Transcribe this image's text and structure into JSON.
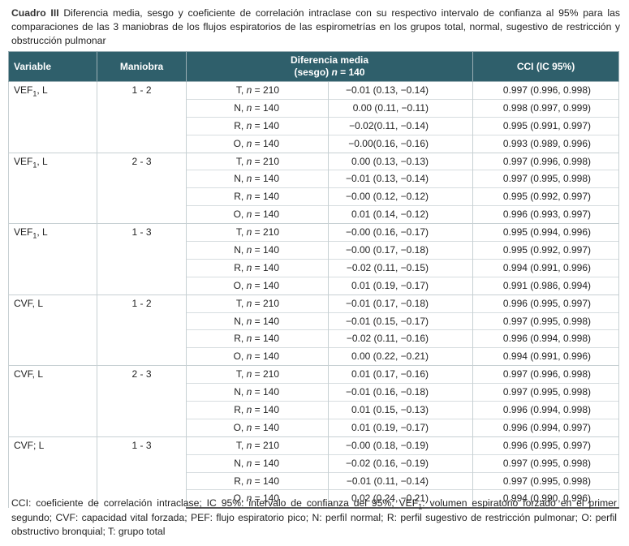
{
  "caption": {
    "label": "Cuadro III",
    "text": "Diferencia media, sesgo y coeficiente de correlación intraclase con su respectivo intervalo de confianza al 95% para las comparaciones de las 3 maniobras de los flujos espiratorios de las espirometrías en los grupos total, normal, sugestivo de restricción y obstrucción pulmonar"
  },
  "headers": {
    "variable": "Variable",
    "maniobra": "Maniobra",
    "diff_line1": "Diferencia media",
    "diff_line2_prefix": "(sesgo) ",
    "diff_line2_n": "n",
    "diff_line2_suffix": " = 140",
    "cci": "CCI (IC 95%)"
  },
  "blocks": [
    {
      "var_main": "VEF",
      "var_sub": "1",
      "var_suffix": ", L",
      "maniobra": "1 - 2",
      "rows": [
        {
          "g": "T",
          "n": "210",
          "diff": "−0.01 (0.13, −0.14)",
          "cci": "0.997 (0.996, 0.998)"
        },
        {
          "g": "N",
          "n": "140",
          "diff": "0.00 (0.11, −0.11)",
          "cci": "0.998 (0.997, 0.999)"
        },
        {
          "g": "R",
          "n": "140",
          "diff": "−0.02(0.11, −0.14)",
          "cci": "0.995 (0.991, 0.997)"
        },
        {
          "g": "O",
          "n": "140",
          "diff": "−0.00(0.16, −0.16)",
          "cci": "0.993 (0.989, 0.996)"
        }
      ]
    },
    {
      "var_main": "VEF",
      "var_sub": "1",
      "var_suffix": ", L",
      "maniobra": "2 - 3",
      "rows": [
        {
          "g": "T",
          "n": "210",
          "diff": "0.00 (0.13, −0.13)",
          "cci": "0.997 (0.996, 0.998)"
        },
        {
          "g": "N",
          "n": "140",
          "diff": "−0.01 (0.13, −0.14)",
          "cci": "0.997 (0.995, 0.998)"
        },
        {
          "g": "R",
          "n": "140",
          "diff": "−0.00 (0.12, −0.12)",
          "cci": "0.995 (0.992, 0.997)"
        },
        {
          "g": "O",
          "n": "140",
          "diff": "0.01 (0.14, −0.12)",
          "cci": "0.996 (0.993, 0.997)"
        }
      ]
    },
    {
      "var_main": "VEF",
      "var_sub": "1",
      "var_suffix": ", L",
      "maniobra": "1 - 3",
      "rows": [
        {
          "g": "T",
          "n": "210",
          "diff": "−0.00 (0.16, −0.17)",
          "cci": "0.995 (0.994, 0.996)"
        },
        {
          "g": "N",
          "n": "140",
          "diff": "−0.00 (0.17, −0.18)",
          "cci": "0.995 (0.992, 0.997)"
        },
        {
          "g": "R",
          "n": "140",
          "diff": "−0.02 (0.11, −0.15)",
          "cci": "0.994 (0.991, 0.996)"
        },
        {
          "g": "O",
          "n": "140",
          "diff": "0.01 (0.19, −0.17)",
          "cci": "0.991 (0.986, 0.994)"
        }
      ]
    },
    {
      "var_main": "CVF, L",
      "var_sub": "",
      "var_suffix": "",
      "maniobra": "1 - 2",
      "rows": [
        {
          "g": "T",
          "n": "210",
          "diff": "−0.01 (0.17, −0.18)",
          "cci": "0.996 (0.995, 0.997)"
        },
        {
          "g": "N",
          "n": "140",
          "diff": "−0.01 (0.15, −0.17)",
          "cci": "0.997 (0.995, 0.998)"
        },
        {
          "g": "R",
          "n": "140",
          "diff": "−0.02 (0.11, −0.16)",
          "cci": "0.996 (0.994, 0.998)"
        },
        {
          "g": "O",
          "n": "140",
          "diff": "0.00 (0.22, −0.21)",
          "cci": "0.994 (0.991, 0.996)"
        }
      ]
    },
    {
      "var_main": "CVF, L",
      "var_sub": "",
      "var_suffix": "",
      "maniobra": "2 - 3",
      "rows": [
        {
          "g": "T",
          "n": "210",
          "diff": "0.01 (0.17, −0.16)",
          "cci": "0.997 (0.996, 0.998)"
        },
        {
          "g": "N",
          "n": "140",
          "diff": "−0.01 (0.16, −0.18)",
          "cci": "0.997 (0.995, 0.998)"
        },
        {
          "g": "R",
          "n": "140",
          "diff": "0.01 (0.15, −0.13)",
          "cci": "0.996 (0.994, 0.998)"
        },
        {
          "g": "O",
          "n": "140",
          "diff": "0.01 (0.19, −0.17)",
          "cci": "0.996 (0.994, 0.997)"
        }
      ]
    },
    {
      "var_main": "CVF; L",
      "var_sub": "",
      "var_suffix": "",
      "maniobra": "1 - 3",
      "rows": [
        {
          "g": "T",
          "n": "210",
          "diff": "−0.00 (0.18, −0.19)",
          "cci": "0.996 (0.995, 0.997)"
        },
        {
          "g": "N",
          "n": "140",
          "diff": "−0.02 (0.16, −0.19)",
          "cci": "0.997 (0.995, 0.998)"
        },
        {
          "g": "R",
          "n": "140",
          "diff": "−0.01 (0.11, −0.14)",
          "cci": "0.997 (0.995, 0.998)"
        },
        {
          "g": "O",
          "n": "140",
          "diff": "0.02 (0.24, −0.21)",
          "cci": "0.994 (0.990, 0.996)"
        }
      ]
    }
  ],
  "footnote": {
    "part1": "CCI: coeficiente de correlación intraclase; IC 95%: intervalo de confianza del 95%; VEF",
    "sub": "1",
    "part2": ": volumen espiratorio forzado en el primer segundo; CVF: capacidad vital forzada; PEF: flujo espiratorio pico; N: perfil normal; R: perfil sugestivo de restricción pulmonar; O: perfil obstructivo bronquial; T: grupo total"
  }
}
